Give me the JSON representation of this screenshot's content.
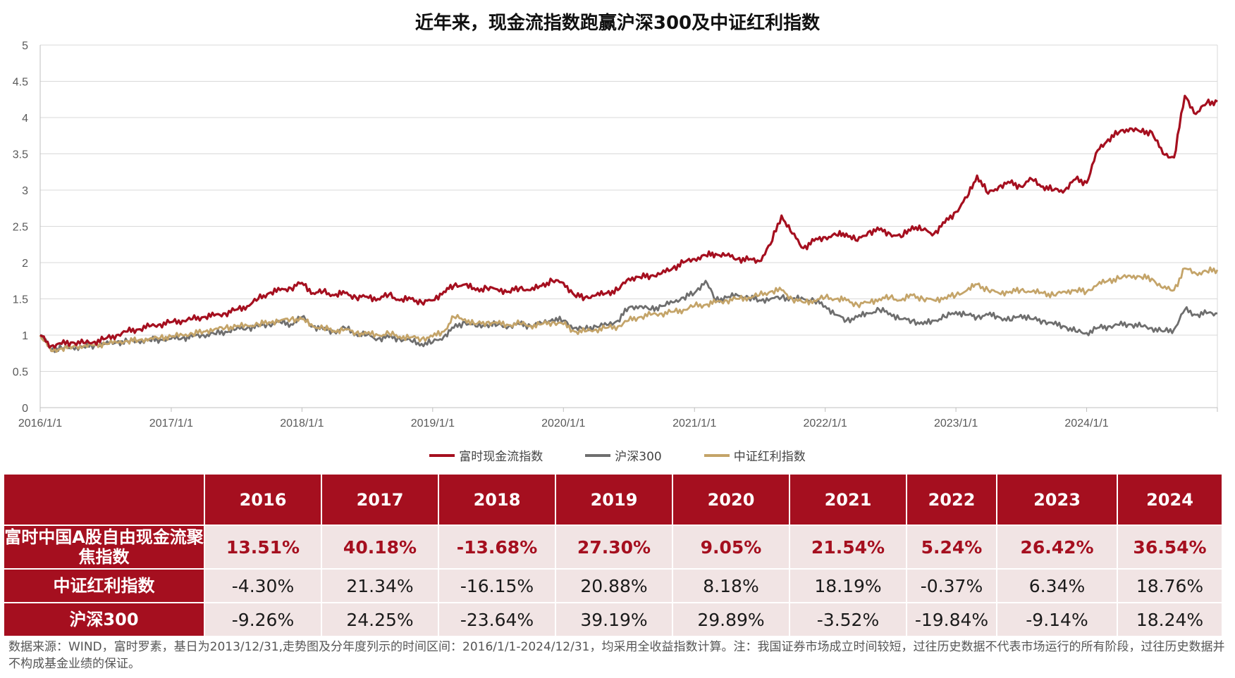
{
  "title": "近年来，现金流指数跑赢沪深300及中证红利指数",
  "colors": {
    "fcf": "#a50f1f",
    "csi300": "#6e6e6e",
    "div": "#c4a469",
    "header_bg": "#a50f1f",
    "row_bg": "#f1e4e4"
  },
  "chart_data": {
    "type": "line",
    "title": "近年来，现金流指数跑赢沪深300及中证红利指数",
    "x_ticks": [
      "2016/1/1",
      "2017/1/1",
      "2018/1/1",
      "2019/1/1",
      "2020/1/1",
      "2021/1/1",
      "2022/1/1",
      "2023/1/1",
      "2024/1/1"
    ],
    "x_range": [
      "2016/1/1",
      "2024/12/31"
    ],
    "ylim": [
      0,
      5
    ],
    "y_ticks": [
      "0",
      "0.5",
      "1",
      "1.5",
      "2",
      "2.5",
      "3",
      "3.5",
      "4",
      "4.5",
      "5"
    ],
    "grid": "horizontal",
    "legend_position": "bottom",
    "x": [
      "2016/1/1",
      "2016/2/1",
      "2016/3/1",
      "2016/4/1",
      "2016/5/1",
      "2016/6/1",
      "2016/7/1",
      "2016/8/1",
      "2016/9/1",
      "2016/10/1",
      "2016/11/1",
      "2016/12/1",
      "2017/1/1",
      "2017/2/1",
      "2017/3/1",
      "2017/4/1",
      "2017/5/1",
      "2017/6/1",
      "2017/7/1",
      "2017/8/1",
      "2017/9/1",
      "2017/10/1",
      "2017/11/1",
      "2017/12/1",
      "2018/1/1",
      "2018/2/1",
      "2018/3/1",
      "2018/4/1",
      "2018/5/1",
      "2018/6/1",
      "2018/7/1",
      "2018/8/1",
      "2018/9/1",
      "2018/10/1",
      "2018/11/1",
      "2018/12/1",
      "2019/1/1",
      "2019/2/1",
      "2019/3/1",
      "2019/4/1",
      "2019/5/1",
      "2019/6/1",
      "2019/7/1",
      "2019/8/1",
      "2019/9/1",
      "2019/10/1",
      "2019/11/1",
      "2019/12/1",
      "2020/1/1",
      "2020/2/1",
      "2020/3/1",
      "2020/4/1",
      "2020/5/1",
      "2020/6/1",
      "2020/7/1",
      "2020/8/1",
      "2020/9/1",
      "2020/10/1",
      "2020/11/1",
      "2020/12/1",
      "2021/1/1",
      "2021/2/1",
      "2021/3/1",
      "2021/4/1",
      "2021/5/1",
      "2021/6/1",
      "2021/7/1",
      "2021/8/1",
      "2021/9/1",
      "2021/10/1",
      "2021/11/1",
      "2021/12/1",
      "2022/1/1",
      "2022/2/1",
      "2022/3/1",
      "2022/4/1",
      "2022/5/1",
      "2022/6/1",
      "2022/7/1",
      "2022/8/1",
      "2022/9/1",
      "2022/10/1",
      "2022/11/1",
      "2022/12/1",
      "2023/1/1",
      "2023/2/1",
      "2023/3/1",
      "2023/4/1",
      "2023/5/1",
      "2023/6/1",
      "2023/7/1",
      "2023/8/1",
      "2023/9/1",
      "2023/10/1",
      "2023/11/1",
      "2023/12/1",
      "2024/1/1",
      "2024/2/1",
      "2024/3/1",
      "2024/4/1",
      "2024/5/1",
      "2024/6/1",
      "2024/7/1",
      "2024/8/1",
      "2024/9/1",
      "2024/10/1",
      "2024/11/1",
      "2024/12/1",
      "2024/12/31"
    ],
    "series": [
      {
        "name": "富时现金流指数",
        "color": "#a50f1f",
        "values": [
          1.0,
          0.85,
          0.88,
          0.9,
          0.89,
          0.91,
          0.95,
          1.0,
          1.05,
          1.08,
          1.12,
          1.15,
          1.18,
          1.2,
          1.22,
          1.25,
          1.27,
          1.3,
          1.35,
          1.4,
          1.5,
          1.58,
          1.62,
          1.65,
          1.72,
          1.58,
          1.6,
          1.55,
          1.58,
          1.52,
          1.53,
          1.5,
          1.56,
          1.48,
          1.5,
          1.45,
          1.48,
          1.6,
          1.68,
          1.7,
          1.62,
          1.65,
          1.63,
          1.6,
          1.65,
          1.62,
          1.68,
          1.75,
          1.72,
          1.55,
          1.52,
          1.55,
          1.58,
          1.62,
          1.78,
          1.8,
          1.82,
          1.85,
          1.92,
          2.0,
          2.05,
          2.1,
          2.12,
          2.1,
          2.05,
          2.04,
          2.02,
          2.25,
          2.65,
          2.4,
          2.2,
          2.3,
          2.35,
          2.38,
          2.4,
          2.3,
          2.42,
          2.45,
          2.4,
          2.35,
          2.5,
          2.45,
          2.4,
          2.55,
          2.7,
          2.9,
          3.2,
          2.95,
          3.05,
          3.1,
          3.05,
          3.15,
          3.05,
          3.0,
          3.0,
          3.15,
          3.1,
          3.55,
          3.7,
          3.8,
          3.85,
          3.8,
          3.8,
          3.5,
          3.45,
          4.3,
          4.05,
          4.2,
          4.22
        ]
      },
      {
        "name": "沪深300",
        "color": "#6e6e6e",
        "values": [
          1.0,
          0.8,
          0.82,
          0.83,
          0.84,
          0.86,
          0.88,
          0.9,
          0.91,
          0.92,
          0.93,
          0.94,
          0.95,
          0.96,
          0.98,
          1.0,
          1.02,
          1.05,
          1.08,
          1.1,
          1.12,
          1.15,
          1.18,
          1.15,
          1.25,
          1.12,
          1.08,
          1.05,
          1.1,
          1.02,
          1.0,
          0.95,
          0.97,
          0.95,
          0.92,
          0.88,
          0.9,
          0.98,
          1.1,
          1.18,
          1.12,
          1.15,
          1.14,
          1.12,
          1.15,
          1.13,
          1.16,
          1.22,
          1.2,
          1.1,
          1.08,
          1.12,
          1.14,
          1.2,
          1.38,
          1.4,
          1.35,
          1.4,
          1.45,
          1.52,
          1.58,
          1.75,
          1.48,
          1.52,
          1.55,
          1.52,
          1.48,
          1.5,
          1.52,
          1.5,
          1.5,
          1.48,
          1.4,
          1.28,
          1.2,
          1.25,
          1.3,
          1.35,
          1.3,
          1.22,
          1.2,
          1.15,
          1.2,
          1.25,
          1.32,
          1.28,
          1.25,
          1.28,
          1.25,
          1.2,
          1.28,
          1.22,
          1.2,
          1.15,
          1.12,
          1.05,
          1.03,
          1.1,
          1.12,
          1.14,
          1.15,
          1.12,
          1.1,
          1.05,
          1.08,
          1.35,
          1.28,
          1.3,
          1.3
        ]
      },
      {
        "name": "中证红利指数",
        "color": "#c4a469",
        "values": [
          1.0,
          0.78,
          0.82,
          0.84,
          0.85,
          0.86,
          0.88,
          0.9,
          0.92,
          0.93,
          0.95,
          0.96,
          0.98,
          1.0,
          1.02,
          1.05,
          1.08,
          1.1,
          1.12,
          1.13,
          1.15,
          1.18,
          1.2,
          1.22,
          1.22,
          1.12,
          1.1,
          1.06,
          1.08,
          1.03,
          1.02,
          1.0,
          1.02,
          0.98,
          0.97,
          0.95,
          0.98,
          1.05,
          1.25,
          1.22,
          1.15,
          1.18,
          1.16,
          1.14,
          1.16,
          1.13,
          1.15,
          1.18,
          1.15,
          1.05,
          1.05,
          1.08,
          1.1,
          1.12,
          1.2,
          1.25,
          1.28,
          1.3,
          1.32,
          1.35,
          1.4,
          1.42,
          1.45,
          1.48,
          1.5,
          1.52,
          1.55,
          1.6,
          1.62,
          1.5,
          1.45,
          1.48,
          1.52,
          1.5,
          1.48,
          1.42,
          1.45,
          1.5,
          1.52,
          1.48,
          1.55,
          1.5,
          1.48,
          1.52,
          1.55,
          1.62,
          1.7,
          1.62,
          1.58,
          1.6,
          1.62,
          1.6,
          1.58,
          1.55,
          1.6,
          1.62,
          1.6,
          1.7,
          1.75,
          1.78,
          1.82,
          1.8,
          1.78,
          1.65,
          1.62,
          1.92,
          1.85,
          1.88,
          1.9
        ]
      }
    ]
  },
  "legend": [
    {
      "label": "富时现金流指数",
      "color": "#a50f1f"
    },
    {
      "label": "沪深300",
      "color": "#6e6e6e"
    },
    {
      "label": "中证红利指数",
      "color": "#c4a469"
    }
  ],
  "table": {
    "corner": "",
    "years": [
      "2016",
      "2017",
      "2018",
      "2019",
      "2020",
      "2021",
      "2022",
      "2023",
      "2024"
    ],
    "rows": [
      {
        "name": "富时中国A股自由现金流聚焦指数",
        "values": [
          "13.51%",
          "40.18%",
          "-13.68%",
          "27.30%",
          "9.05%",
          "21.54%",
          "5.24%",
          "26.42%",
          "36.54%"
        ]
      },
      {
        "name": "中证红利指数",
        "values": [
          "-4.30%",
          "21.34%",
          "-16.15%",
          "20.88%",
          "8.18%",
          "18.19%",
          "-0.37%",
          "6.34%",
          "18.76%"
        ]
      },
      {
        "name": "沪深300",
        "values": [
          "-9.26%",
          "24.25%",
          "-23.64%",
          "39.19%",
          "29.89%",
          "-3.52%",
          "-19.84%",
          "-9.14%",
          "18.24%"
        ]
      }
    ]
  },
  "footnote": "数据来源：WIND，富时罗素，基日为2013/12/31,走势图及分年度列示的时间区间：2016/1/1-2024/12/31，均采用全收益指数计算。注：我国证券市场成立时间较短，过往历史数据不代表市场运行的所有阶段，过往历史数据并不构成基金业绩的保证。"
}
